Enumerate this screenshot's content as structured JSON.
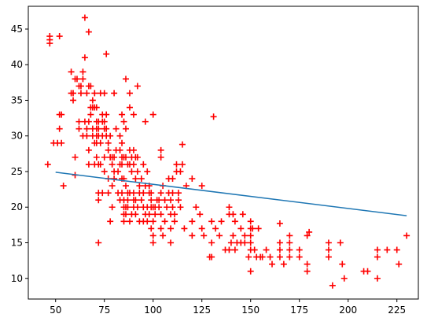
{
  "chart_data": {
    "type": "scatter",
    "title": "",
    "xlabel": "",
    "ylabel": "",
    "xlim": [
      36,
      236
    ],
    "ylim": [
      7.1,
      48.2
    ],
    "xticks": [
      50,
      75,
      100,
      125,
      150,
      175,
      200,
      225
    ],
    "yticks": [
      10,
      15,
      20,
      25,
      30,
      35,
      40,
      45
    ],
    "grid": false,
    "legend": "none",
    "colors": {
      "points": "#ff0000",
      "line": "#1f77b4",
      "axes": "#000000"
    },
    "series": [
      {
        "kind": "scatter",
        "marker": "plus",
        "points": [
          [
            46,
            26
          ],
          [
            47,
            43
          ],
          [
            47,
            44
          ],
          [
            47,
            43.5
          ],
          [
            49,
            29
          ],
          [
            51,
            29
          ],
          [
            52,
            44
          ],
          [
            52,
            31
          ],
          [
            52,
            33
          ],
          [
            53,
            33
          ],
          [
            53,
            29
          ],
          [
            54,
            23
          ],
          [
            58,
            39
          ],
          [
            58,
            36
          ],
          [
            59,
            36
          ],
          [
            59,
            35
          ],
          [
            60,
            38
          ],
          [
            60,
            27
          ],
          [
            60,
            24.5
          ],
          [
            61,
            38
          ],
          [
            62,
            37
          ],
          [
            62,
            32
          ],
          [
            62,
            31
          ],
          [
            63,
            36
          ],
          [
            63,
            37
          ],
          [
            64,
            38
          ],
          [
            64,
            30
          ],
          [
            64,
            39
          ],
          [
            65,
            41
          ],
          [
            65,
            32
          ],
          [
            65,
            46.6
          ],
          [
            66,
            36
          ],
          [
            66,
            31
          ],
          [
            66,
            30
          ],
          [
            67,
            37
          ],
          [
            67,
            44.6
          ],
          [
            67,
            32
          ],
          [
            67,
            28
          ],
          [
            67,
            26
          ],
          [
            68,
            34
          ],
          [
            68,
            33
          ],
          [
            68,
            37
          ],
          [
            69,
            35
          ],
          [
            69,
            34
          ],
          [
            69,
            31
          ],
          [
            69,
            30
          ],
          [
            70,
            34
          ],
          [
            70,
            36
          ],
          [
            70,
            29
          ],
          [
            70,
            26
          ],
          [
            71,
            34
          ],
          [
            71,
            32
          ],
          [
            71,
            31
          ],
          [
            71,
            29
          ],
          [
            71,
            30
          ],
          [
            71,
            27
          ],
          [
            72,
            32
          ],
          [
            72,
            31
          ],
          [
            72,
            30
          ],
          [
            72,
            26
          ],
          [
            72,
            22
          ],
          [
            72,
            21
          ],
          [
            72,
            15
          ],
          [
            73,
            29
          ],
          [
            73,
            26
          ],
          [
            73,
            36
          ],
          [
            74,
            33
          ],
          [
            74,
            32
          ],
          [
            74,
            30
          ],
          [
            74,
            22
          ],
          [
            75,
            36
          ],
          [
            75,
            32
          ],
          [
            75,
            31
          ],
          [
            75,
            27
          ],
          [
            75,
            25
          ],
          [
            76,
            33
          ],
          [
            76,
            31
          ],
          [
            76,
            30
          ],
          [
            76,
            41.5
          ],
          [
            77,
            29
          ],
          [
            77,
            28
          ],
          [
            77,
            24
          ],
          [
            77,
            22
          ],
          [
            78,
            30
          ],
          [
            78,
            27
          ],
          [
            78,
            18
          ],
          [
            79,
            27
          ],
          [
            79,
            26
          ],
          [
            79,
            23
          ],
          [
            79,
            20
          ],
          [
            80,
            27
          ],
          [
            80,
            25
          ],
          [
            80,
            24
          ],
          [
            80,
            36
          ],
          [
            81,
            28
          ],
          [
            81,
            31
          ],
          [
            82,
            25
          ],
          [
            82,
            22
          ],
          [
            83,
            30
          ],
          [
            83,
            28
          ],
          [
            83,
            26
          ],
          [
            83,
            21
          ],
          [
            84,
            33
          ],
          [
            84,
            29
          ],
          [
            84,
            27
          ],
          [
            84,
            26
          ],
          [
            84,
            24
          ],
          [
            84,
            22
          ],
          [
            85,
            32
          ],
          [
            85,
            27
          ],
          [
            85,
            24
          ],
          [
            85,
            21
          ],
          [
            85,
            20
          ],
          [
            85,
            19
          ],
          [
            85,
            18
          ],
          [
            86,
            38
          ],
          [
            86,
            31
          ],
          [
            86,
            27
          ],
          [
            86,
            23
          ],
          [
            86,
            20
          ],
          [
            86,
            19
          ],
          [
            87,
            22
          ],
          [
            87,
            21
          ],
          [
            87,
            20
          ],
          [
            87,
            26
          ],
          [
            88,
            36
          ],
          [
            88,
            34
          ],
          [
            88,
            28
          ],
          [
            88,
            26
          ],
          [
            88,
            22
          ],
          [
            88,
            18
          ],
          [
            89,
            27
          ],
          [
            89,
            25
          ],
          [
            89,
            19
          ],
          [
            90,
            33
          ],
          [
            90,
            28
          ],
          [
            90,
            26
          ],
          [
            90,
            22
          ],
          [
            90,
            21
          ],
          [
            90,
            20
          ],
          [
            91,
            27
          ],
          [
            91,
            24
          ],
          [
            91,
            21
          ],
          [
            91,
            19
          ],
          [
            92,
            37
          ],
          [
            92,
            27
          ],
          [
            92,
            25
          ],
          [
            92,
            20
          ],
          [
            93,
            23
          ],
          [
            93,
            22
          ],
          [
            93,
            18
          ],
          [
            94,
            24
          ],
          [
            94,
            21
          ],
          [
            95,
            26
          ],
          [
            95,
            22
          ],
          [
            95,
            20
          ],
          [
            95,
            18
          ],
          [
            96,
            32
          ],
          [
            96,
            23
          ],
          [
            96,
            19
          ],
          [
            97,
            25
          ],
          [
            97,
            20
          ],
          [
            97,
            18
          ],
          [
            98,
            23
          ],
          [
            98,
            22
          ],
          [
            98,
            19
          ],
          [
            99,
            22
          ],
          [
            99,
            21
          ],
          [
            99,
            20
          ],
          [
            99,
            17
          ],
          [
            100,
            33
          ],
          [
            100,
            20
          ],
          [
            100,
            18
          ],
          [
            100,
            16
          ],
          [
            100,
            15
          ],
          [
            101,
            20
          ],
          [
            101,
            19
          ],
          [
            102,
            21
          ],
          [
            103,
            21
          ],
          [
            103,
            20
          ],
          [
            104,
            28
          ],
          [
            104,
            27
          ],
          [
            104,
            22
          ],
          [
            104,
            19
          ],
          [
            104,
            17
          ],
          [
            105,
            23
          ],
          [
            105,
            16
          ],
          [
            106,
            21
          ],
          [
            106,
            18
          ],
          [
            107,
            20
          ],
          [
            108,
            24
          ],
          [
            108,
            22
          ],
          [
            109,
            21
          ],
          [
            109,
            19
          ],
          [
            109,
            17
          ],
          [
            109,
            15
          ],
          [
            110,
            22
          ],
          [
            110,
            20
          ],
          [
            110,
            24
          ],
          [
            111,
            19
          ],
          [
            111,
            18
          ],
          [
            112,
            25
          ],
          [
            112,
            26
          ],
          [
            113,
            22
          ],
          [
            113,
            21
          ],
          [
            114,
            25
          ],
          [
            114,
            20
          ],
          [
            115,
            28.8
          ],
          [
            115,
            26
          ],
          [
            116,
            17
          ],
          [
            117,
            23
          ],
          [
            120,
            24
          ],
          [
            120,
            18
          ],
          [
            120,
            16
          ],
          [
            122,
            20
          ],
          [
            124,
            19
          ],
          [
            125,
            23
          ],
          [
            125,
            17
          ],
          [
            126,
            16
          ],
          [
            129,
            13
          ],
          [
            130,
            18
          ],
          [
            130,
            15
          ],
          [
            130,
            13
          ],
          [
            131,
            32.7
          ],
          [
            132,
            17
          ],
          [
            134,
            16
          ],
          [
            135,
            18
          ],
          [
            137,
            14
          ],
          [
            139,
            20
          ],
          [
            139,
            19
          ],
          [
            139,
            14
          ],
          [
            140,
            15
          ],
          [
            141,
            19
          ],
          [
            141,
            16
          ],
          [
            142,
            18
          ],
          [
            142,
            14
          ],
          [
            143,
            15
          ],
          [
            145,
            17
          ],
          [
            145,
            15
          ],
          [
            146,
            19
          ],
          [
            147,
            16
          ],
          [
            147,
            15
          ],
          [
            149,
            13
          ],
          [
            150,
            18
          ],
          [
            150,
            17
          ],
          [
            150,
            16
          ],
          [
            150,
            15
          ],
          [
            150,
            14
          ],
          [
            150,
            11
          ],
          [
            151,
            17
          ],
          [
            152,
            14
          ],
          [
            153,
            13
          ],
          [
            154,
            17
          ],
          [
            155,
            13
          ],
          [
            156,
            13
          ],
          [
            158,
            14
          ],
          [
            160,
            13
          ],
          [
            161,
            12
          ],
          [
            165,
            17.7
          ],
          [
            165,
            15
          ],
          [
            165,
            14
          ],
          [
            165,
            13
          ],
          [
            167,
            12
          ],
          [
            170,
            16
          ],
          [
            170,
            15
          ],
          [
            170,
            14
          ],
          [
            170,
            13
          ],
          [
            175,
            14
          ],
          [
            175,
            13
          ],
          [
            179,
            16
          ],
          [
            179,
            12
          ],
          [
            179,
            11
          ],
          [
            180,
            16.5
          ],
          [
            190,
            15
          ],
          [
            190,
            14
          ],
          [
            190,
            13
          ],
          [
            192,
            9
          ],
          [
            196,
            15
          ],
          [
            197,
            12
          ],
          [
            198,
            10
          ],
          [
            208,
            11
          ],
          [
            210,
            11
          ],
          [
            215,
            14
          ],
          [
            215,
            13
          ],
          [
            215,
            10
          ],
          [
            220,
            14
          ],
          [
            225,
            14
          ],
          [
            226,
            12
          ],
          [
            230,
            16
          ]
        ]
      },
      {
        "kind": "line",
        "points": [
          [
            50,
            24.9
          ],
          [
            230,
            18.8
          ]
        ]
      }
    ]
  }
}
